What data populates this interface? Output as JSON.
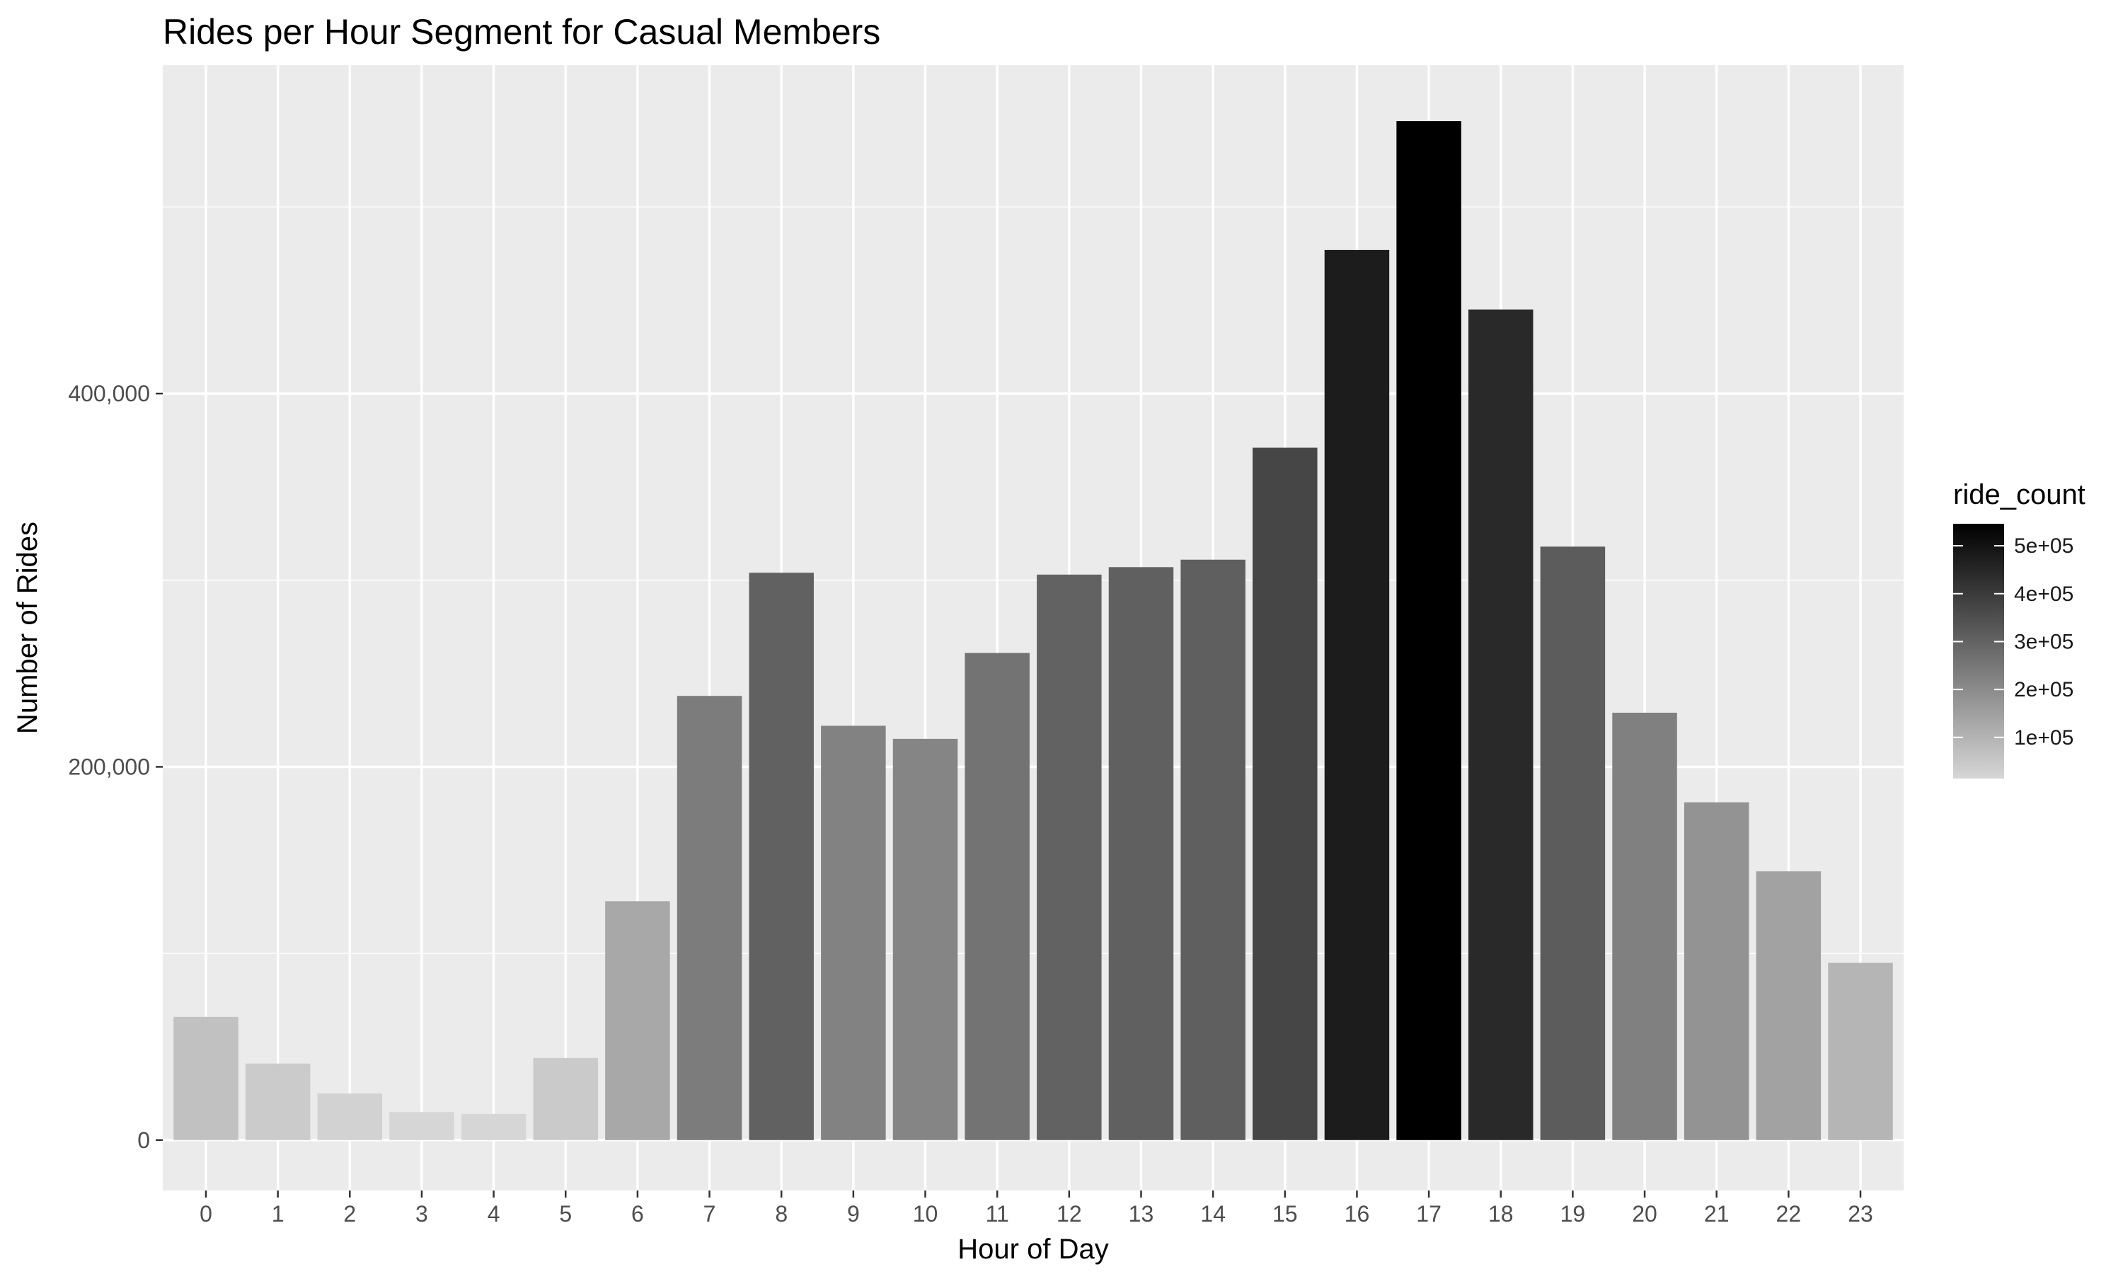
{
  "chart_data": {
    "type": "bar",
    "title": "Rides per Hour Segment for Casual Members",
    "xlabel": "Hour of Day",
    "ylabel": "Number of Rides",
    "categories": [
      "0",
      "1",
      "2",
      "3",
      "4",
      "5",
      "6",
      "7",
      "8",
      "9",
      "10",
      "11",
      "12",
      "13",
      "14",
      "15",
      "16",
      "17",
      "18",
      "19",
      "20",
      "21",
      "22",
      "23"
    ],
    "values": [
      66000,
      41000,
      25000,
      15000,
      14000,
      44000,
      128000,
      238000,
      304000,
      222000,
      215000,
      261000,
      303000,
      307000,
      311000,
      371000,
      477000,
      546000,
      445000,
      318000,
      229000,
      181000,
      144000,
      95000
    ],
    "ylim": [
      -27000,
      576000
    ],
    "y_ticks": [
      0,
      200000,
      400000
    ],
    "y_tick_labels": [
      "0",
      "200,000",
      "400,000"
    ],
    "grid": true,
    "fill_scale": {
      "name": "ride_count",
      "low": 14000,
      "high": 546000,
      "low_color": "#d6d6d6",
      "high_color": "#000000",
      "breaks": [
        100000,
        200000,
        300000,
        400000,
        500000
      ],
      "break_labels": [
        "1e+05",
        "2e+05",
        "3e+05",
        "4e+05",
        "5e+05"
      ]
    },
    "legend_position": "right",
    "colors": {
      "panel_background": "#ebebeb",
      "grid_major": "#ffffff"
    }
  }
}
